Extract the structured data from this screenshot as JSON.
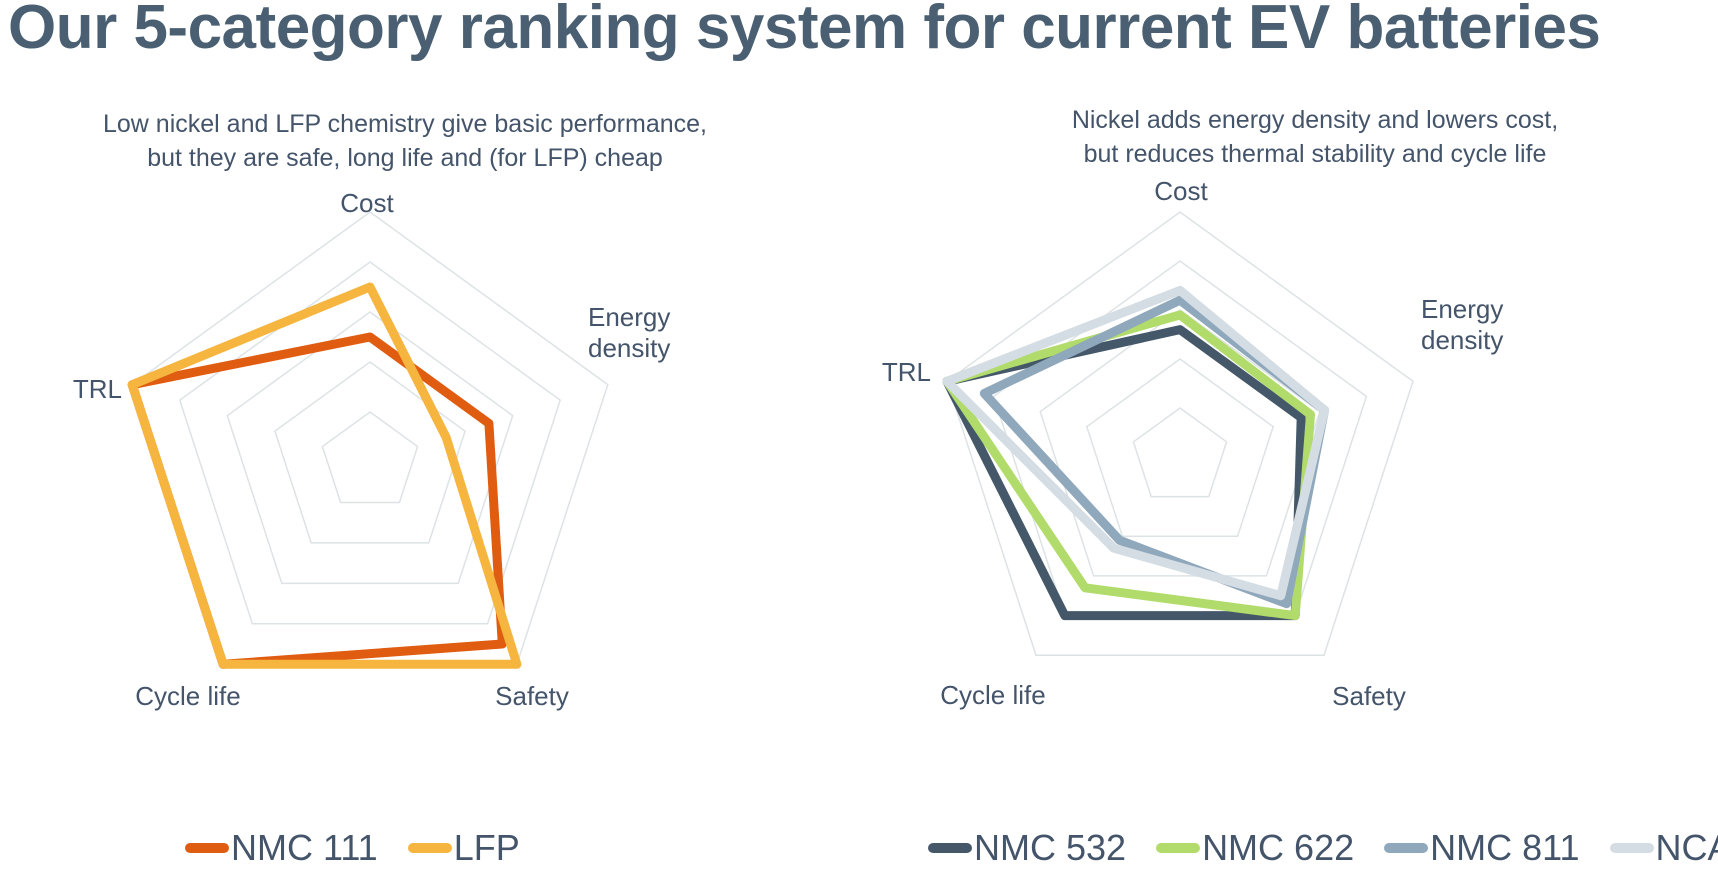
{
  "title": "Our 5-category ranking system for current EV batteries",
  "charts": [
    {
      "subtitle": [
        "Low nickel and LFP chemistry give basic performance,",
        "but they are safe, long life and (for LFP) cheap"
      ]
    },
    {
      "subtitle": [
        "Nickel adds energy density and lowers cost,",
        "but reduces thermal stability and cycle life"
      ]
    }
  ],
  "chart_data": [
    {
      "type": "radar",
      "title": "Low nickel and LFP chemistry give basic performance, but they are safe, long life and (for LFP) cheap",
      "axes": [
        "Cost",
        "Energy density",
        "Safety",
        "Cycle life",
        "TRL"
      ],
      "rlim": [
        0,
        5
      ],
      "gridlines": 5,
      "series": [
        {
          "name": "NMC 111",
          "color": "#e05c10",
          "values": [
            2.5,
            2.5,
            4.5,
            5,
            5
          ]
        },
        {
          "name": "LFP",
          "color": "#f5b53f",
          "values": [
            3.5,
            1.6,
            5,
            5,
            5
          ]
        }
      ],
      "legend": "bottom"
    },
    {
      "type": "radar",
      "title": "Nickel adds energy density and lowers cost, but reduces thermal stability and cycle life",
      "axes": [
        "Cost",
        "Energy density",
        "Safety",
        "Cycle life",
        "TRL"
      ],
      "rlim": [
        0,
        5
      ],
      "gridlines": 5,
      "series": [
        {
          "name": "NMC 532",
          "color": "#45586a",
          "values": [
            2.6,
            2.6,
            4,
            4,
            5
          ]
        },
        {
          "name": "NMC 622",
          "color": "#b1dc6b",
          "values": [
            2.9,
            2.8,
            4,
            3.3,
            5
          ]
        },
        {
          "name": "NMC 811",
          "color": "#90a8bc",
          "values": [
            3.2,
            3.1,
            3.7,
            2.1,
            4.2
          ]
        },
        {
          "name": "NCA",
          "color": "#d5dde4",
          "values": [
            3.4,
            3.1,
            3.5,
            2.3,
            5
          ]
        }
      ],
      "legend": "bottom"
    }
  ]
}
